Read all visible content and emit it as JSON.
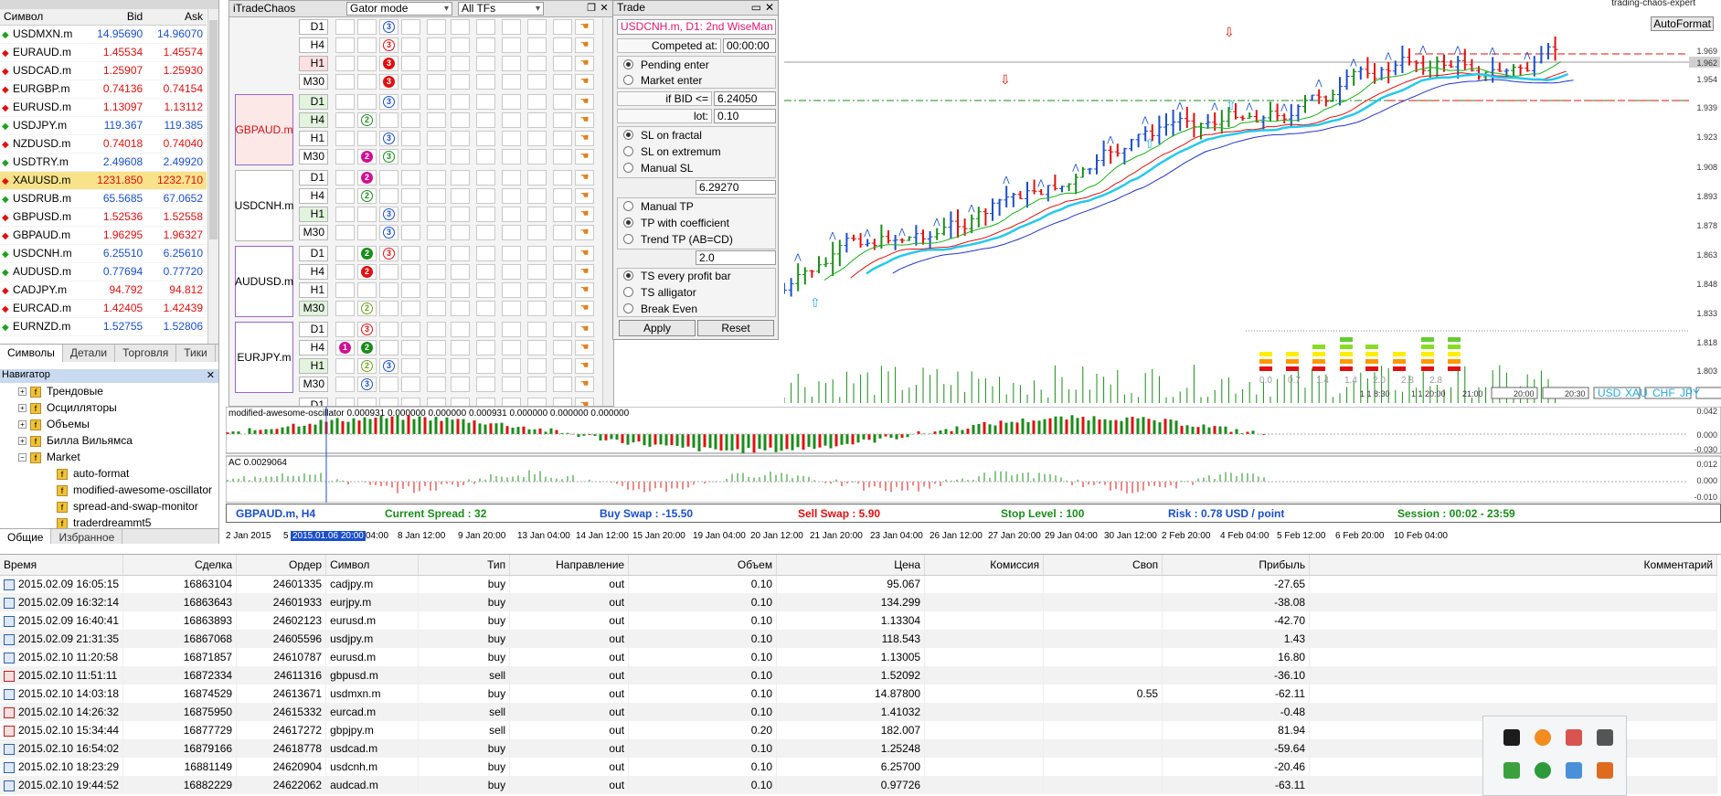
{
  "market_watch": {
    "header": {
      "symbol": "Символ",
      "bid": "Bid",
      "ask": "Ask"
    },
    "rows": [
      {
        "symbol": "USDMXN.m",
        "bid": "14.95690",
        "ask": "14.96070",
        "dir": "up"
      },
      {
        "symbol": "EURAUD.m",
        "bid": "1.45534",
        "ask": "1.45574",
        "dir": "dn"
      },
      {
        "symbol": "USDCAD.m",
        "bid": "1.25907",
        "ask": "1.25930",
        "dir": "dn"
      },
      {
        "symbol": "EURGBP.m",
        "bid": "0.74136",
        "ask": "0.74154",
        "dir": "dn"
      },
      {
        "symbol": "EURUSD.m",
        "bid": "1.13097",
        "ask": "1.13112",
        "dir": "dn"
      },
      {
        "symbol": "USDJPY.m",
        "bid": "119.367",
        "ask": "119.385",
        "dir": "up"
      },
      {
        "symbol": "NZDUSD.m",
        "bid": "0.74018",
        "ask": "0.74040",
        "dir": "dn"
      },
      {
        "symbol": "USDTRY.m",
        "bid": "2.49608",
        "ask": "2.49920",
        "dir": "up"
      },
      {
        "symbol": "XAUUSD.m",
        "bid": "1231.850",
        "ask": "1232.710",
        "dir": "dn"
      },
      {
        "symbol": "USDRUB.m",
        "bid": "65.5685",
        "ask": "67.0652",
        "dir": "up"
      },
      {
        "symbol": "GBPUSD.m",
        "bid": "1.52536",
        "ask": "1.52558",
        "dir": "dn"
      },
      {
        "symbol": "GBPAUD.m",
        "bid": "1.96295",
        "ask": "1.96327",
        "dir": "dn"
      },
      {
        "symbol": "USDCNH.m",
        "bid": "6.25510",
        "ask": "6.25610",
        "dir": "up"
      },
      {
        "symbol": "AUDUSD.m",
        "bid": "0.77694",
        "ask": "0.77720",
        "dir": "up"
      },
      {
        "symbol": "CADJPY.m",
        "bid": "94.792",
        "ask": "94.812",
        "dir": "dn"
      },
      {
        "symbol": "EURCAD.m",
        "bid": "1.42405",
        "ask": "1.42439",
        "dir": "dn"
      },
      {
        "symbol": "EURNZD.m",
        "bid": "1.52755",
        "ask": "1.52806",
        "dir": "up"
      }
    ],
    "tabs": [
      "Символы",
      "Детали",
      "Торговля",
      "Тики"
    ]
  },
  "navigator": {
    "title": "Навигатор",
    "items": [
      "Трендовые",
      "Осцилляторы",
      "Объемы",
      "Билла Вильямса",
      "Market"
    ],
    "subitems": [
      "auto-format",
      "modified-awesome-oscillator",
      "spread-and-swap-monitor",
      "traderdreammt5"
    ],
    "tabs": [
      "Общие",
      "Избранное"
    ]
  },
  "itc": {
    "title": "iTradeChaos",
    "mode": "Gator mode",
    "tfs": "All TFs",
    "first_row_tf": "D1",
    "top_rows": [
      "H4",
      "H1",
      "M30"
    ],
    "groups": [
      {
        "name": "GBPAUD.m",
        "tfs": [
          "D1",
          "H4",
          "H1",
          "M30"
        ]
      },
      {
        "name": "USDCNH.m",
        "tfs": [
          "D1",
          "H4",
          "H1",
          "M30"
        ]
      },
      {
        "name": "AUDUSD.m",
        "tfs": [
          "D1",
          "H4",
          "H1",
          "M30"
        ]
      },
      {
        "name": "EURJPY.m",
        "tfs": [
          "D1",
          "H4",
          "H1",
          "M30"
        ]
      }
    ],
    "last_row_tf": "D1"
  },
  "trade": {
    "title": "Trade",
    "symbol": "USDCNH.m, D1: 2nd WiseMan",
    "competed_label": "Competed at:",
    "competed_value": "00:00:00",
    "entry_options": [
      "Pending enter",
      "Market enter"
    ],
    "if_bid_label": "if BID <=",
    "if_bid_value": "6.24050",
    "lot_label": "lot:",
    "lot_value": "0.10",
    "sl_options": [
      "SL on fractal",
      "SL on extremum",
      "Manual SL"
    ],
    "sl_value": "6.29270",
    "tp_options": [
      "Manual TP",
      "TP with coefficient",
      "Trend TP (AB=CD)"
    ],
    "tp_value": "2.0",
    "ts_options": [
      "TS every profit bar",
      "TS alligator",
      "Break Even"
    ],
    "apply": "Apply",
    "reset": "Reset"
  },
  "chart": {
    "brand": "trading-chaos-expert",
    "autoformat": "AutoFormat",
    "price_labels": [
      "1.969",
      "1.954",
      "1.939",
      "1.923",
      "1.908",
      "1.893",
      "1.878",
      "1.863",
      "1.848",
      "1.833",
      "1.818",
      "1.803"
    ],
    "current_price": "1.962",
    "ao_label": "modified-awesome-oscillator 0.000931 0.000000 0.000000 0.000931 0.000000 0.000000 0.000000",
    "ao_scale": [
      "0.042",
      "0.000",
      "-0.030"
    ],
    "ac_label": "AC 0.0029064",
    "ac_scale": [
      "0.012",
      "0.000",
      "-0.010"
    ],
    "currency_labels": [
      "USD",
      "XAU",
      "CHF",
      "JPY"
    ],
    "small_labels": [
      "0.0",
      "0.7",
      "1.4",
      "1.4",
      "2.0",
      "2.8",
      "2.8"
    ],
    "time_boxes": [
      "1 1 8:30",
      "1 1 20:00",
      "21:00",
      "20:00",
      "20:30"
    ]
  },
  "status": {
    "symbol": "GBPAUD.m, H4",
    "spread": "Current Spread :  32",
    "buy_swap": "Buy Swap :  -15.50",
    "sell_swap": "Sell Swap :  5.90",
    "stop_level": "Stop Level :  100",
    "risk": "Risk :  0.78 USD / point",
    "session": "Session :  00:02 - 23:59"
  },
  "time_axis": {
    "highlight": "2015.01.06 20:00",
    "labels": [
      "2 Jan 2015",
      "5",
      "04:00",
      "8 Jan 12:00",
      "9 Jan 20:00",
      "13 Jan 04:00",
      "14 Jan 12:00",
      "15 Jan 20:00",
      "19 Jan 04:00",
      "20 Jan 12:00",
      "21 Jan 20:00",
      "23 Jan 04:00",
      "26 Jan 12:00",
      "27 Jan 20:00",
      "29 Jan 04:00",
      "30 Jan 12:00",
      "2 Feb 20:00",
      "4 Feb 04:00",
      "5 Feb 12:00",
      "6 Feb 20:00",
      "10 Feb 04:00"
    ]
  },
  "deals": {
    "headers": [
      "Время",
      "Сделка",
      "Ордер",
      "Символ",
      "Тип",
      "Направление",
      "Объем",
      "Цена",
      "Комиссия",
      "Своп",
      "Прибыль",
      "Комментарий"
    ],
    "rows": [
      [
        "2015.02.09 16:05:15",
        "16863104",
        "24601335",
        "cadjpy.m",
        "buy",
        "out",
        "0.10",
        "95.067",
        "",
        "",
        "-27.65",
        ""
      ],
      [
        "2015.02.09 16:32:14",
        "16863643",
        "24601933",
        "eurjpy.m",
        "buy",
        "out",
        "0.10",
        "134.299",
        "",
        "",
        "-38.08",
        ""
      ],
      [
        "2015.02.09 16:40:41",
        "16863893",
        "24602123",
        "eurusd.m",
        "buy",
        "out",
        "0.10",
        "1.13304",
        "",
        "",
        "-42.70",
        ""
      ],
      [
        "2015.02.09 21:31:35",
        "16867068",
        "24605596",
        "usdjpy.m",
        "buy",
        "out",
        "0.10",
        "118.543",
        "",
        "",
        "1.43",
        ""
      ],
      [
        "2015.02.10 11:20:58",
        "16871857",
        "24610787",
        "eurusd.m",
        "buy",
        "out",
        "0.10",
        "1.13005",
        "",
        "",
        "16.80",
        ""
      ],
      [
        "2015.02.10 11:51:11",
        "16872334",
        "24611316",
        "gbpusd.m",
        "sell",
        "out",
        "0.10",
        "1.52092",
        "",
        "",
        "-36.10",
        ""
      ],
      [
        "2015.02.10 14:03:18",
        "16874529",
        "24613671",
        "usdmxn.m",
        "buy",
        "out",
        "0.10",
        "14.87800",
        "",
        "0.55",
        "-62.11",
        ""
      ],
      [
        "2015.02.10 14:26:32",
        "16875950",
        "24615332",
        "eurcad.m",
        "sell",
        "out",
        "0.10",
        "1.41032",
        "",
        "",
        "-0.48",
        ""
      ],
      [
        "2015.02.10 15:34:44",
        "16877729",
        "24617272",
        "gbpjpy.m",
        "sell",
        "out",
        "0.20",
        "182.007",
        "",
        "",
        "81.94",
        ""
      ],
      [
        "2015.02.10 16:54:02",
        "16879166",
        "24618778",
        "usdcad.m",
        "buy",
        "out",
        "0.10",
        "1.25248",
        "",
        "",
        "-59.64",
        ""
      ],
      [
        "2015.02.10 18:23:29",
        "16881149",
        "24620904",
        "usdcnh.m",
        "buy",
        "out",
        "0.10",
        "6.25700",
        "",
        "",
        "-20.46",
        ""
      ],
      [
        "2015.02.10 19:44:52",
        "16882229",
        "24622062",
        "audcad.m",
        "buy",
        "out",
        "0.10",
        "0.97726",
        "",
        "",
        "-63.11",
        ""
      ]
    ]
  },
  "colors": {
    "accent": "#1a4ecc",
    "sell": "#e01010",
    "buy": "#1a8c1a",
    "pink": "#e0156e"
  }
}
